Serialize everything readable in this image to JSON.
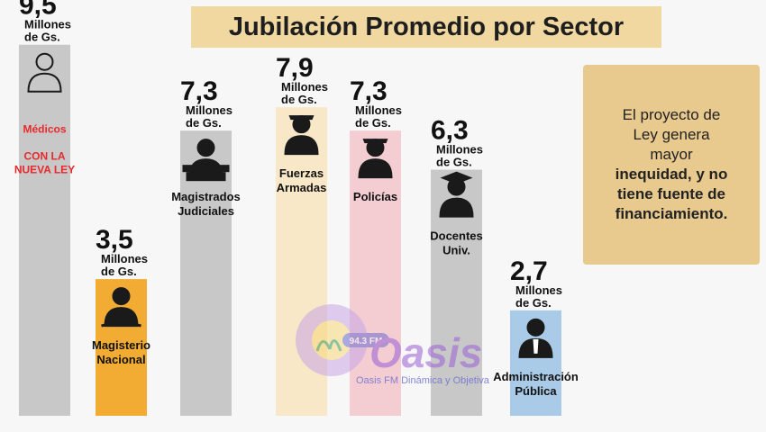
{
  "title": "Jubilación Promedio por Sector",
  "chart_data": {
    "type": "bar",
    "title": "Jubilación Promedio por Sector",
    "unit_label": [
      "Millones",
      "de Gs."
    ],
    "ylim": [
      0,
      10
    ],
    "categories": [
      {
        "value_text": "9,5",
        "value": 9.5,
        "label": [],
        "color": "#c8c8c8",
        "icon": "doctor-icon",
        "red_label": [
          "Médicos",
          "",
          "CON LA",
          "NUEVA LEY"
        ]
      },
      {
        "value_text": "3,5",
        "value": 3.5,
        "label": [
          "Magisterio",
          "Nacional"
        ],
        "color": "#f2ac34",
        "icon": "teacher-icon"
      },
      {
        "value_text": "7,3",
        "value": 7.3,
        "label": [
          "Magistrados",
          "Judiciales"
        ],
        "color": "#c8c8c8",
        "icon": "judge-icon"
      },
      {
        "value_text": "7,9",
        "value": 7.9,
        "label": [
          "Fuerzas",
          "Armadas"
        ],
        "color": "#f8e8c8",
        "icon": "soldier-icon"
      },
      {
        "value_text": "7,3",
        "value": 7.3,
        "label": [
          "Policías"
        ],
        "color": "#f3cdd2",
        "icon": "police-icon"
      },
      {
        "value_text": "6,3",
        "value": 6.3,
        "label": [
          "Docentes",
          "Univ."
        ],
        "color": "#c8c8c8",
        "icon": "graduate-icon"
      },
      {
        "value_text": "2,7",
        "value": 2.7,
        "label": [
          "Administración",
          "Pública"
        ],
        "color": "#a9cbe8",
        "icon": "office-worker-icon"
      }
    ]
  },
  "note": {
    "line1": "El proyecto de",
    "line2": "Ley genera",
    "line3": "mayor",
    "bold1": "inequidad, y no",
    "bold2": "tiene fuente de",
    "bold3": "financiamiento."
  },
  "watermark": {
    "logo_text": "Oasis",
    "badge": "94.3 FM",
    "caption": "Oasis FM Dinámica y Objetiva"
  }
}
